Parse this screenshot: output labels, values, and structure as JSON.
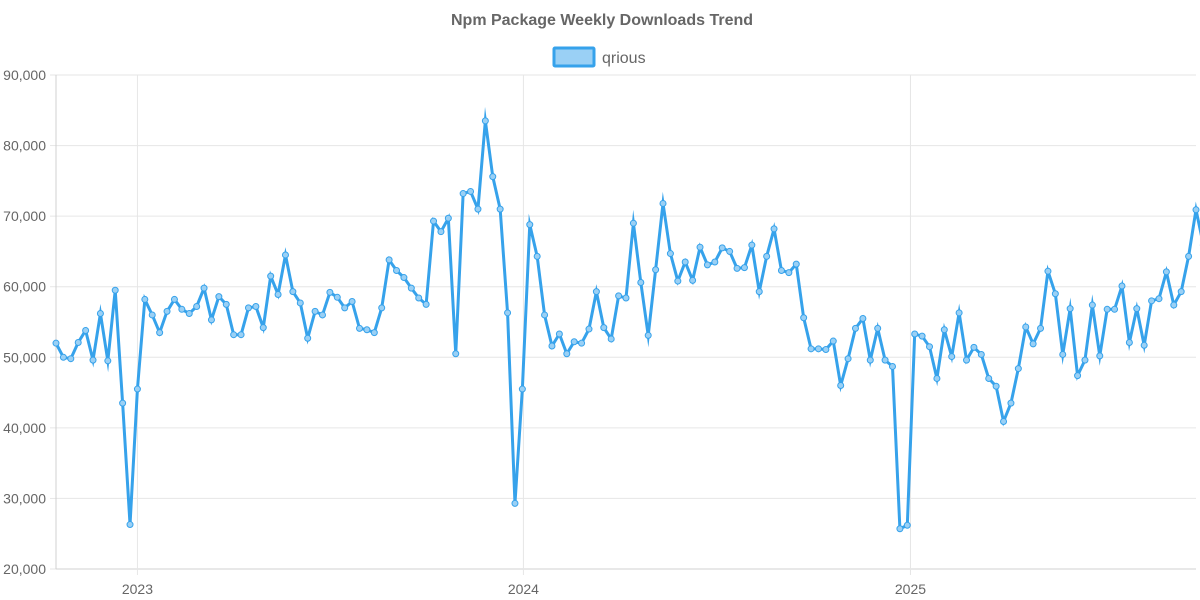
{
  "chart_data": {
    "type": "line",
    "title": "Npm Package Weekly Downloads Trend",
    "xlabel": "",
    "ylabel": "",
    "ylim": [
      20000,
      90000
    ],
    "y_ticks": [
      20000,
      30000,
      40000,
      50000,
      60000,
      70000,
      80000,
      90000
    ],
    "y_tick_labels": [
      "20,000",
      "30,000",
      "40,000",
      "50,000",
      "60,000",
      "70,000",
      "80,000",
      "90,000"
    ],
    "x_range": [
      "2022-10-16",
      "2025-09-28"
    ],
    "x_ticks": [
      "2023-01-01",
      "2024-01-01",
      "2025-01-01"
    ],
    "x_tick_labels": [
      "2023",
      "2024",
      "2025"
    ],
    "grid": true,
    "legend_position": "top-center",
    "series": [
      {
        "name": "qrious",
        "color": "#36a2eb",
        "fill_color": "#9ad0f5",
        "x_start": "2022-10-16",
        "x_interval": "weekly",
        "values": [
          52000,
          50000,
          49800,
          52100,
          53800,
          49600,
          56200,
          49500,
          59500,
          43500,
          26300,
          45500,
          58200,
          56000,
          53500,
          56500,
          58200,
          56800,
          56200,
          57200,
          59800,
          55300,
          58600,
          57500,
          53200,
          53200,
          57000,
          57200,
          54200,
          61500,
          58900,
          64500,
          59300,
          57700,
          52700,
          56500,
          56000,
          59200,
          58500,
          57000,
          57900,
          54100,
          53900,
          53500,
          57000,
          63800,
          62300,
          61300,
          59800,
          58400,
          57500,
          69300,
          67800,
          69700,
          50500,
          73200,
          73500,
          71000,
          83500,
          75600,
          71000,
          56300,
          29300,
          45500,
          68800,
          64300,
          56000,
          51600,
          53300,
          50500,
          52200,
          52000,
          54000,
          59300,
          54200,
          52600,
          58700,
          58400,
          69000,
          60600,
          53100,
          62400,
          71800,
          64700,
          60800,
          63500,
          60900,
          65600,
          63100,
          63500,
          65500,
          65000,
          62600,
          62700,
          65900,
          59300,
          64300,
          68200,
          62300,
          62000,
          63200,
          55600,
          51200,
          51200,
          51100,
          52300,
          46000,
          49800,
          54100,
          55500,
          49600,
          54100,
          49600,
          48700,
          25700,
          26200,
          53300,
          53000,
          51500,
          47000,
          53900,
          50100,
          56300,
          49600,
          51400,
          50400,
          47000,
          45900,
          40900,
          43500,
          48400,
          54300,
          51900,
          54100,
          62200,
          59000,
          50400,
          56900,
          47400,
          49600,
          57400,
          50200,
          56800,
          56800,
          60100,
          52100,
          56900,
          51700,
          58000,
          58300,
          62100,
          57400,
          59300,
          64300,
          70900,
          65900
        ]
      }
    ]
  }
}
